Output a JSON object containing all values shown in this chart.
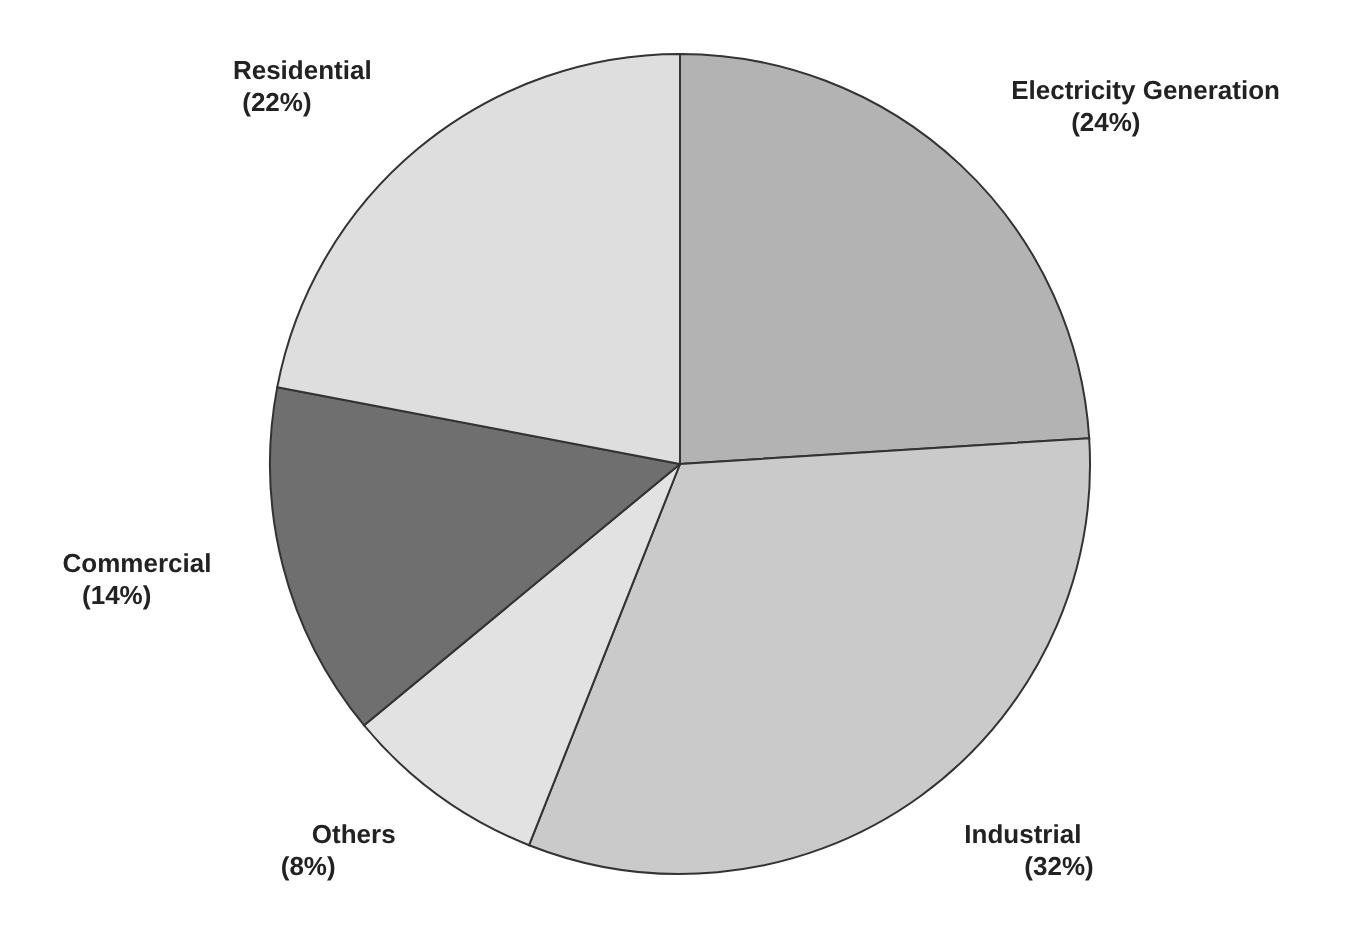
{
  "chart_data": {
    "type": "pie",
    "categories": [
      "Electricity Generation",
      "Industrial",
      "Others",
      "Commercial",
      "Residential"
    ],
    "values": [
      24,
      32,
      8,
      14,
      22
    ],
    "colors": [
      "#b3b3b3",
      "#cacaca",
      "#e2e2e2",
      "#6f6f6f",
      "#dedede"
    ],
    "value_labels": [
      "(24%)",
      "(32%)",
      "(8%)",
      "(14%)",
      "(22%)"
    ]
  }
}
